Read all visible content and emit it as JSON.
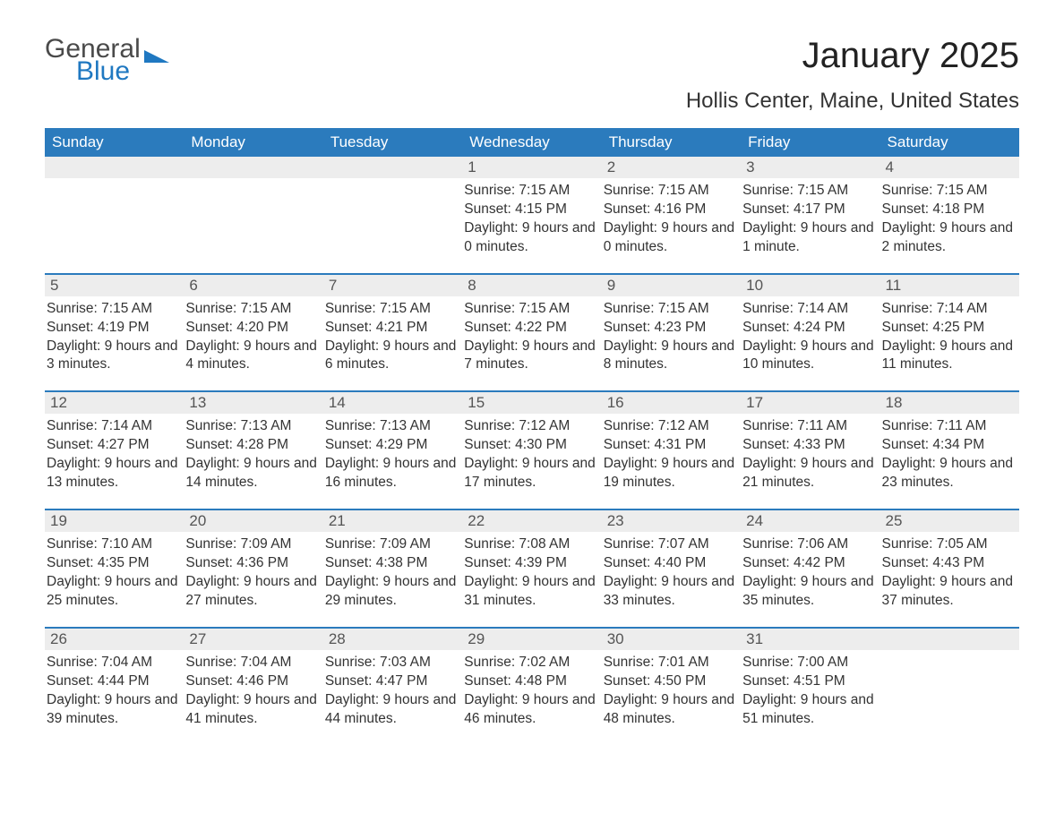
{
  "logo": {
    "text1": "General",
    "text2": "Blue",
    "accent_color": "#1f78c1"
  },
  "title": "January 2025",
  "location": "Hollis Center, Maine, United States",
  "header_bg": "#2b7bbd",
  "header_fg": "#ffffff",
  "daynum_bg": "#ededed",
  "text_color": "#333333",
  "days_of_week": [
    "Sunday",
    "Monday",
    "Tuesday",
    "Wednesday",
    "Thursday",
    "Friday",
    "Saturday"
  ],
  "weeks": [
    [
      null,
      null,
      null,
      {
        "n": "1",
        "sunrise": "7:15 AM",
        "sunset": "4:15 PM",
        "daylight": "9 hours and 0 minutes."
      },
      {
        "n": "2",
        "sunrise": "7:15 AM",
        "sunset": "4:16 PM",
        "daylight": "9 hours and 0 minutes."
      },
      {
        "n": "3",
        "sunrise": "7:15 AM",
        "sunset": "4:17 PM",
        "daylight": "9 hours and 1 minute."
      },
      {
        "n": "4",
        "sunrise": "7:15 AM",
        "sunset": "4:18 PM",
        "daylight": "9 hours and 2 minutes."
      }
    ],
    [
      {
        "n": "5",
        "sunrise": "7:15 AM",
        "sunset": "4:19 PM",
        "daylight": "9 hours and 3 minutes."
      },
      {
        "n": "6",
        "sunrise": "7:15 AM",
        "sunset": "4:20 PM",
        "daylight": "9 hours and 4 minutes."
      },
      {
        "n": "7",
        "sunrise": "7:15 AM",
        "sunset": "4:21 PM",
        "daylight": "9 hours and 6 minutes."
      },
      {
        "n": "8",
        "sunrise": "7:15 AM",
        "sunset": "4:22 PM",
        "daylight": "9 hours and 7 minutes."
      },
      {
        "n": "9",
        "sunrise": "7:15 AM",
        "sunset": "4:23 PM",
        "daylight": "9 hours and 8 minutes."
      },
      {
        "n": "10",
        "sunrise": "7:14 AM",
        "sunset": "4:24 PM",
        "daylight": "9 hours and 10 minutes."
      },
      {
        "n": "11",
        "sunrise": "7:14 AM",
        "sunset": "4:25 PM",
        "daylight": "9 hours and 11 minutes."
      }
    ],
    [
      {
        "n": "12",
        "sunrise": "7:14 AM",
        "sunset": "4:27 PM",
        "daylight": "9 hours and 13 minutes."
      },
      {
        "n": "13",
        "sunrise": "7:13 AM",
        "sunset": "4:28 PM",
        "daylight": "9 hours and 14 minutes."
      },
      {
        "n": "14",
        "sunrise": "7:13 AM",
        "sunset": "4:29 PM",
        "daylight": "9 hours and 16 minutes."
      },
      {
        "n": "15",
        "sunrise": "7:12 AM",
        "sunset": "4:30 PM",
        "daylight": "9 hours and 17 minutes."
      },
      {
        "n": "16",
        "sunrise": "7:12 AM",
        "sunset": "4:31 PM",
        "daylight": "9 hours and 19 minutes."
      },
      {
        "n": "17",
        "sunrise": "7:11 AM",
        "sunset": "4:33 PM",
        "daylight": "9 hours and 21 minutes."
      },
      {
        "n": "18",
        "sunrise": "7:11 AM",
        "sunset": "4:34 PM",
        "daylight": "9 hours and 23 minutes."
      }
    ],
    [
      {
        "n": "19",
        "sunrise": "7:10 AM",
        "sunset": "4:35 PM",
        "daylight": "9 hours and 25 minutes."
      },
      {
        "n": "20",
        "sunrise": "7:09 AM",
        "sunset": "4:36 PM",
        "daylight": "9 hours and 27 minutes."
      },
      {
        "n": "21",
        "sunrise": "7:09 AM",
        "sunset": "4:38 PM",
        "daylight": "9 hours and 29 minutes."
      },
      {
        "n": "22",
        "sunrise": "7:08 AM",
        "sunset": "4:39 PM",
        "daylight": "9 hours and 31 minutes."
      },
      {
        "n": "23",
        "sunrise": "7:07 AM",
        "sunset": "4:40 PM",
        "daylight": "9 hours and 33 minutes."
      },
      {
        "n": "24",
        "sunrise": "7:06 AM",
        "sunset": "4:42 PM",
        "daylight": "9 hours and 35 minutes."
      },
      {
        "n": "25",
        "sunrise": "7:05 AM",
        "sunset": "4:43 PM",
        "daylight": "9 hours and 37 minutes."
      }
    ],
    [
      {
        "n": "26",
        "sunrise": "7:04 AM",
        "sunset": "4:44 PM",
        "daylight": "9 hours and 39 minutes."
      },
      {
        "n": "27",
        "sunrise": "7:04 AM",
        "sunset": "4:46 PM",
        "daylight": "9 hours and 41 minutes."
      },
      {
        "n": "28",
        "sunrise": "7:03 AM",
        "sunset": "4:47 PM",
        "daylight": "9 hours and 44 minutes."
      },
      {
        "n": "29",
        "sunrise": "7:02 AM",
        "sunset": "4:48 PM",
        "daylight": "9 hours and 46 minutes."
      },
      {
        "n": "30",
        "sunrise": "7:01 AM",
        "sunset": "4:50 PM",
        "daylight": "9 hours and 48 minutes."
      },
      {
        "n": "31",
        "sunrise": "7:00 AM",
        "sunset": "4:51 PM",
        "daylight": "9 hours and 51 minutes."
      },
      null
    ]
  ],
  "labels": {
    "sunrise": "Sunrise:",
    "sunset": "Sunset:",
    "daylight": "Daylight:"
  }
}
